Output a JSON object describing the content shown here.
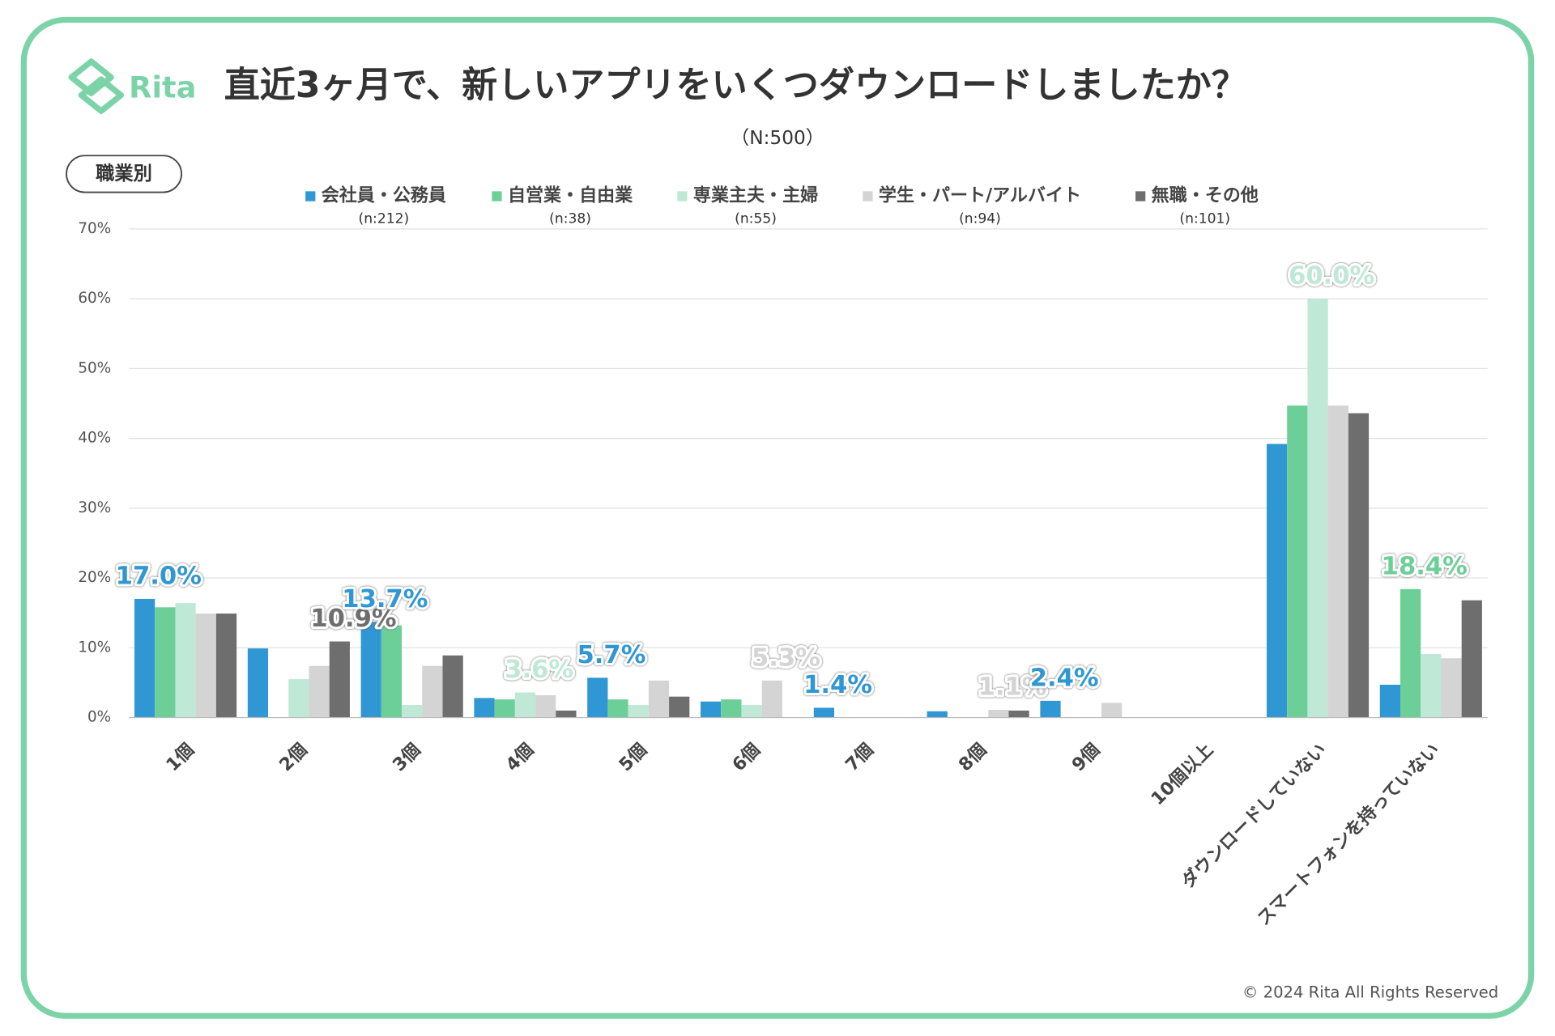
{
  "logo": "Rita",
  "badge": "職業別",
  "copyright": "© 2024 Rita All Rights Reserved",
  "chart_data": {
    "type": "bar",
    "title": "直近3ヶ月で、新しいアプリをいくつダウンロードしましたか？",
    "subtitle": "（N:500）",
    "categories": [
      "1個",
      "2個",
      "3個",
      "4個",
      "5個",
      "6個",
      "7個",
      "8個",
      "9個",
      "10個以上",
      "ダウンロードしていない",
      "スマートフォンを持っていない"
    ],
    "ylim": [
      0,
      70
    ],
    "yticks": [
      {
        "value": 0,
        "label": "0%"
      },
      {
        "value": 10,
        "label": "10%"
      },
      {
        "value": 20,
        "label": "20%"
      },
      {
        "value": 30,
        "label": "30%"
      },
      {
        "value": 40,
        "label": "40%"
      },
      {
        "value": 50,
        "label": "50%"
      },
      {
        "value": 60,
        "label": "60%"
      },
      {
        "value": 70,
        "label": "70%"
      }
    ],
    "grid": true,
    "series": [
      {
        "name": "会社員・公務員",
        "note": "(n:212)",
        "color": "#2f97d3",
        "values": [
          17.0,
          9.9,
          13.7,
          2.8,
          5.7,
          2.3,
          1.4,
          0.9,
          2.4,
          0,
          39.2,
          4.7
        ],
        "value_labels": [
          "17.0%",
          null,
          "13.7%",
          null,
          "5.7%",
          null,
          "1.4%",
          null,
          "2.4%",
          null,
          null,
          null
        ]
      },
      {
        "name": "自営業・自由業",
        "note": "(n:38)",
        "color": "#6dcf98",
        "values": [
          15.8,
          0,
          13.2,
          2.6,
          2.6,
          2.6,
          0,
          0,
          0,
          0,
          44.7,
          18.4
        ],
        "value_labels": [
          null,
          null,
          null,
          null,
          null,
          null,
          null,
          null,
          null,
          null,
          null,
          "18.4%"
        ]
      },
      {
        "name": "専業主夫・主婦",
        "note": "(n:55)",
        "color": "#bfe8d6",
        "values": [
          16.4,
          5.5,
          1.8,
          3.6,
          1.8,
          1.8,
          0,
          0,
          0,
          0,
          60.0,
          9.1
        ],
        "value_labels": [
          null,
          null,
          null,
          "3.6%",
          null,
          null,
          null,
          null,
          null,
          null,
          "60.0%",
          null
        ]
      },
      {
        "name": "学生・パート/アルバイト",
        "note": "(n:94)",
        "color": "#d4d4d4",
        "values": [
          14.9,
          7.4,
          7.4,
          3.2,
          5.3,
          5.3,
          0,
          1.1,
          2.1,
          0,
          44.7,
          8.5
        ],
        "value_labels": [
          null,
          null,
          null,
          null,
          null,
          "5.3%",
          null,
          "1.1%",
          null,
          null,
          null,
          null
        ]
      },
      {
        "name": "無職・その他",
        "note": "(n:101)",
        "color": "#6e6e6e",
        "values": [
          14.9,
          10.9,
          8.9,
          1.0,
          3.0,
          0,
          0,
          1.0,
          0,
          0,
          43.6,
          16.8
        ],
        "value_labels": [
          null,
          "10.9%",
          null,
          null,
          null,
          null,
          null,
          null,
          null,
          null,
          null,
          null
        ]
      }
    ]
  }
}
